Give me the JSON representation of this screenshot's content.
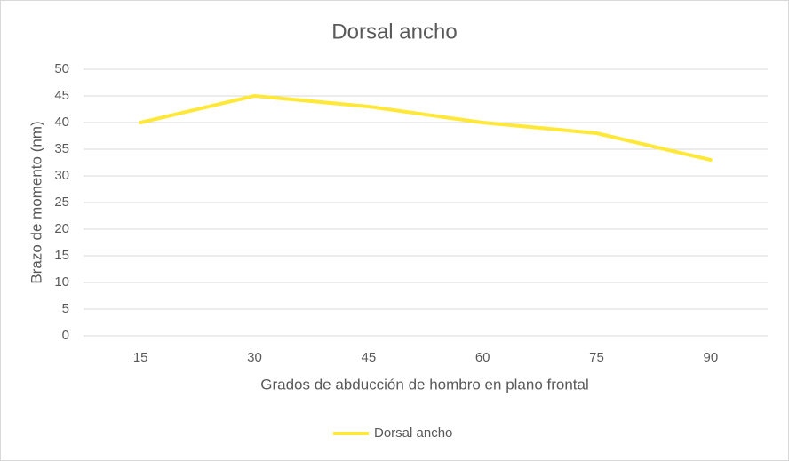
{
  "chart_data": {
    "type": "line",
    "title": "Dorsal ancho",
    "x_label": "Grados de abducción de hombro en plano frontal",
    "y_label": "Brazo de momento (nm)",
    "categories": [
      "15",
      "30",
      "45",
      "60",
      "75",
      "90"
    ],
    "series": [
      {
        "name": "Dorsal ancho",
        "color": "#ffe838",
        "values": [
          40,
          45,
          43,
          40,
          38,
          33
        ]
      }
    ],
    "ylim": [
      0,
      50
    ],
    "yticks": [
      0,
      5,
      10,
      15,
      20,
      25,
      30,
      35,
      40,
      45,
      50
    ],
    "grid": true,
    "legend": "bottom"
  }
}
